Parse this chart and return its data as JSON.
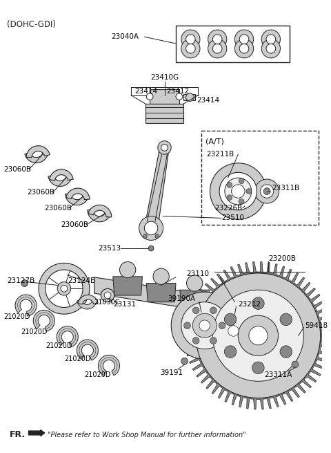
{
  "bg_color": "#ffffff",
  "text_color": "#000000",
  "header_label": "(DOHC-GDI)",
  "footer_text": "\"Please refer to Work Shop Manual for further information\"",
  "footer_label": "FR.",
  "at_label": "(A/T)",
  "line_color": "#222222",
  "part_fill": "#cccccc",
  "part_dark": "#888888",
  "part_light": "#eeeeee"
}
